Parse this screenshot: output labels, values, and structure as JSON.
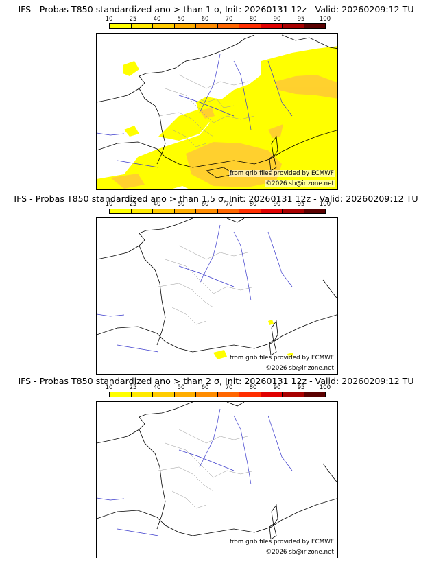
{
  "scale": {
    "ticks": [
      "10",
      "25",
      "40",
      "50",
      "60",
      "70",
      "80",
      "90",
      "95",
      "100"
    ],
    "colors": [
      "#ffff00",
      "#ffea00",
      "#ffcc00",
      "#ffad00",
      "#ff8c00",
      "#ff6600",
      "#ff2e00",
      "#e00000",
      "#a80000",
      "#5a0000"
    ]
  },
  "panels": [
    {
      "title": "IFS - Probas T850  standardized ano > than 1 σ, Init: 20260131 12z - Valid: 20260209:12 TU",
      "credit_source": "from grib files provided by ECMWF",
      "credit_copy": "©2026 sb@irizone.net"
    },
    {
      "title": "IFS - Probas T850  standardized ano > than 1.5 σ, Init: 20260131 12z - Valid: 20260209:12 TU",
      "credit_source": "from grib files provided by ECMWF",
      "credit_copy": "©2026 sb@irizone.net"
    },
    {
      "title": "IFS - Probas T850  standardized ano > than 2 σ, Init: 20260131 12z - Valid: 20260209:12 TU",
      "credit_source": "from grib files provided by ECMWF",
      "credit_copy": "©2026 sb@irizone.net"
    }
  ]
}
